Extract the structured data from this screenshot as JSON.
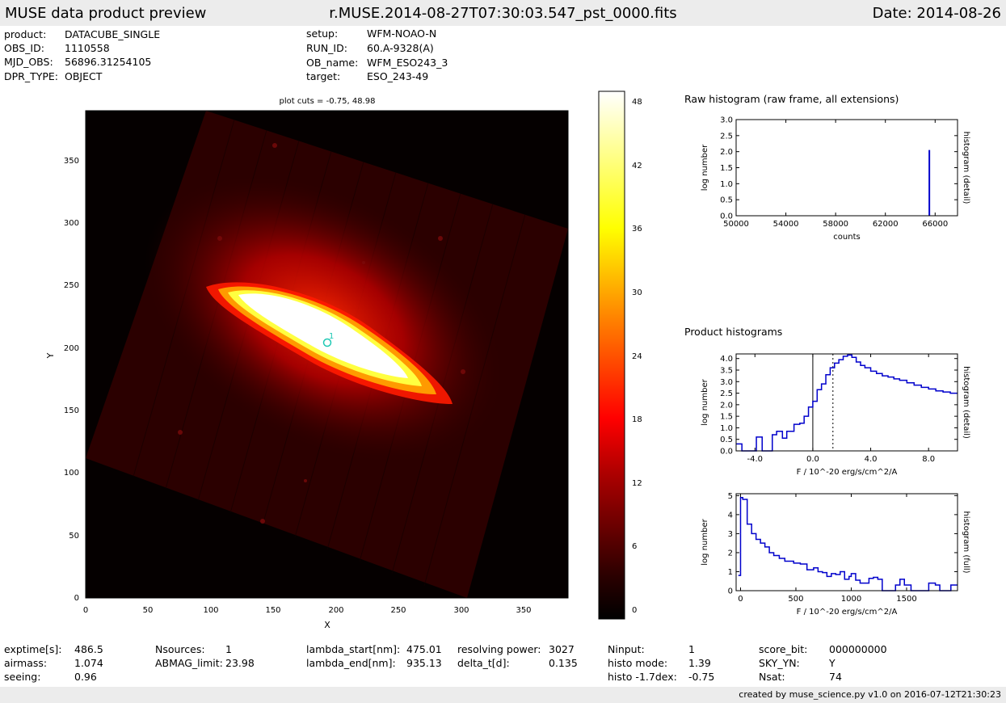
{
  "header": {
    "title": "MUSE data product preview",
    "filename": "r.MUSE.2014-08-27T07:30:03.547_pst_0000.fits",
    "date": "Date: 2014-08-26"
  },
  "meta_left": [
    {
      "key": "product:",
      "value": "DATACUBE_SINGLE"
    },
    {
      "key": "OBS_ID:",
      "value": "1110558"
    },
    {
      "key": "MJD_OBS:",
      "value": "56896.31254105"
    },
    {
      "key": "DPR_TYPE:",
      "value": "OBJECT"
    }
  ],
  "meta_right": [
    {
      "key": "setup:",
      "value": "WFM-NOAO-N"
    },
    {
      "key": "RUN_ID:",
      "value": "60.A-9328(A)"
    },
    {
      "key": "OB_name:",
      "value": "WFM_ESO243_3"
    },
    {
      "key": "target:",
      "value": "ESO_243-49"
    }
  ],
  "image_panel": {
    "title": "plot cuts = -0.75, 48.98",
    "xlabel": "X",
    "ylabel": "Y",
    "xticks": [
      "0",
      "50",
      "100",
      "150",
      "200",
      "250",
      "300",
      "350"
    ],
    "yticks": [
      "0",
      "50",
      "100",
      "150",
      "200",
      "250",
      "300",
      "350"
    ],
    "source_label": "1",
    "colorbar_ticks": [
      "0",
      "6",
      "12",
      "18",
      "24",
      "30",
      "36",
      "42",
      "48"
    ]
  },
  "chart_data": [
    {
      "type": "heatmap",
      "title": "plot cuts = -0.75, 48.98",
      "xlabel": "X",
      "ylabel": "Y",
      "xlim": [
        0,
        385
      ],
      "ylim": [
        0,
        390
      ],
      "color_range": [
        -0.75,
        48.98
      ],
      "colormap": [
        "#000000",
        "#3a0000",
        "#8a0000",
        "#ff0000",
        "#ff8000",
        "#ffff00",
        "#ffffff"
      ],
      "sources": [
        {
          "id": "1",
          "x": 193,
          "y": 204
        }
      ]
    },
    {
      "type": "bar",
      "title": "Raw histogram (raw frame, all extensions)",
      "xlabel": "counts",
      "ylabel": "log number",
      "ylabel_right": "histogram (detail)",
      "xlim": [
        50000,
        67800
      ],
      "ylim": [
        0,
        3.0
      ],
      "xticks": [
        "50000",
        "54000",
        "58000",
        "62000",
        "66000"
      ],
      "yticks": [
        "0.0",
        "0.5",
        "1.0",
        "1.5",
        "2.0",
        "2.5",
        "3.0"
      ],
      "x": [
        65535
      ],
      "values": [
        2.05
      ],
      "color": "#0000cc"
    },
    {
      "type": "line",
      "section_title": "Product histograms",
      "xlabel": "F / 10^-20 erg/s/cm^2/A",
      "ylabel": "log number",
      "ylabel_right": "histogram (detail)",
      "xlim": [
        -5.3,
        10.0
      ],
      "ylim": [
        0,
        4.2
      ],
      "xticks": [
        "-4.0",
        "0.0",
        "4.0",
        "8.0"
      ],
      "yticks": [
        "0.0",
        "0.5",
        "1.0",
        "1.5",
        "2.0",
        "2.5",
        "3.0",
        "3.5",
        "4.0"
      ],
      "zero_line": 0.0,
      "mode_line": 1.39,
      "x": [
        -5.3,
        -4.9,
        -4.2,
        -3.9,
        -3.5,
        -3.1,
        -2.8,
        -2.5,
        -2.1,
        -1.8,
        -1.3,
        -0.9,
        -0.6,
        -0.3,
        0.0,
        0.3,
        0.6,
        0.9,
        1.2,
        1.5,
        1.8,
        2.1,
        2.4,
        2.7,
        3.0,
        3.3,
        3.6,
        4.0,
        4.4,
        4.8,
        5.2,
        5.6,
        6.0,
        6.5,
        7.0,
        7.5,
        8.0,
        8.5,
        9.0,
        9.5
      ],
      "values": [
        0.3,
        0.0,
        0.0,
        0.6,
        0.0,
        0.0,
        0.7,
        0.85,
        0.55,
        0.85,
        1.15,
        1.2,
        1.5,
        1.9,
        2.15,
        2.65,
        2.9,
        3.3,
        3.6,
        3.8,
        3.95,
        4.1,
        4.15,
        4.05,
        3.85,
        3.7,
        3.6,
        3.45,
        3.35,
        3.25,
        3.2,
        3.12,
        3.06,
        2.95,
        2.85,
        2.75,
        2.68,
        2.6,
        2.55,
        2.5
      ],
      "color": "#0000cc"
    },
    {
      "type": "line",
      "xlabel": "F / 10^-20 erg/s/cm^2/A",
      "ylabel": "log number",
      "ylabel_right": "histogram (full)",
      "xlim": [
        -40,
        1960
      ],
      "ylim": [
        0,
        5.1
      ],
      "xticks": [
        "0",
        "500",
        "1000",
        "1500"
      ],
      "yticks": [
        "0",
        "1",
        "2",
        "3",
        "4",
        "5"
      ],
      "x": [
        -20,
        0,
        20,
        60,
        100,
        140,
        180,
        220,
        260,
        300,
        350,
        400,
        480,
        540,
        600,
        660,
        700,
        740,
        780,
        820,
        860,
        900,
        940,
        980,
        1000,
        1040,
        1080,
        1120,
        1160,
        1200,
        1240,
        1280,
        1360,
        1400,
        1440,
        1480,
        1540,
        1600,
        1640,
        1700,
        1760,
        1800,
        1840,
        1900,
        1960
      ],
      "values": [
        0.8,
        4.9,
        4.8,
        3.5,
        3.0,
        2.7,
        2.5,
        2.3,
        2.0,
        1.85,
        1.7,
        1.55,
        1.45,
        1.4,
        1.1,
        1.2,
        1.0,
        0.95,
        0.75,
        0.9,
        0.85,
        1.0,
        0.6,
        0.75,
        0.9,
        0.55,
        0.4,
        0.4,
        0.65,
        0.7,
        0.6,
        0.0,
        0.0,
        0.3,
        0.6,
        0.3,
        0.0,
        0.0,
        0.0,
        0.4,
        0.3,
        0.0,
        0.0,
        0.3,
        0.3
      ],
      "color": "#0000cc"
    }
  ],
  "stats": [
    {
      "key": "exptime[s]:",
      "value": "486.5"
    },
    {
      "key": "airmass:",
      "value": "1.074"
    },
    {
      "key": "seeing:",
      "value": "0.96"
    },
    {
      "key": "Nsources:",
      "value": "1"
    },
    {
      "key": "ABMAG_limit:",
      "value": "23.98"
    },
    {
      "key": "lambda_start[nm]:",
      "value": "475.01"
    },
    {
      "key": "lambda_end[nm]:",
      "value": "935.13"
    },
    {
      "key": "resolving power:",
      "value": "3027"
    },
    {
      "key": "delta_t[d]:",
      "value": "0.135"
    },
    {
      "key": "Ninput:",
      "value": "1"
    },
    {
      "key": "histo mode:",
      "value": "1.39"
    },
    {
      "key": "histo -1.7dex:",
      "value": "-0.75"
    },
    {
      "key": "score_bit:",
      "value": "000000000"
    },
    {
      "key": "SKY_YN:",
      "value": "Y"
    },
    {
      "key": "Nsat:",
      "value": "74"
    }
  ],
  "footer": "created by muse_science.py v1.0 on 2016-07-12T21:30:23"
}
